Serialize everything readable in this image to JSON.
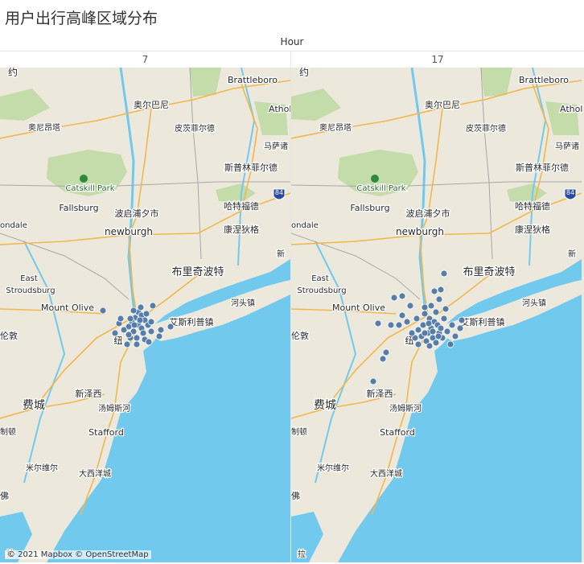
{
  "title": "用户出行高峰区域分布",
  "column_header": "Hour",
  "panels": [
    {
      "hour": "7",
      "points": [
        [
          172,
          388
        ],
        [
          176,
          392
        ],
        [
          168,
          395
        ],
        [
          180,
          398
        ],
        [
          164,
          400
        ],
        [
          172,
          404
        ],
        [
          176,
          408
        ],
        [
          166,
          412
        ],
        [
          178,
          414
        ],
        [
          160,
          406
        ],
        [
          184,
          404
        ],
        [
          170,
          420
        ],
        [
          180,
          422
        ],
        [
          162,
          420
        ],
        [
          154,
          410
        ],
        [
          148,
          402
        ],
        [
          143,
          414
        ],
        [
          188,
          400
        ],
        [
          190,
          380
        ],
        [
          200,
          410
        ],
        [
          212,
          406
        ],
        [
          198,
          418
        ],
        [
          185,
          425
        ],
        [
          158,
          428
        ],
        [
          128,
          386
        ],
        [
          150,
          396
        ],
        [
          175,
          382
        ],
        [
          182,
          390
        ],
        [
          166,
          386
        ],
        [
          188,
          412
        ],
        [
          160,
          416
        ],
        [
          170,
          428
        ],
        [
          174,
          398
        ],
        [
          167,
          404
        ],
        [
          162,
          396
        ]
      ]
    },
    {
      "hour": "17",
      "points": [
        [
          528,
          390
        ],
        [
          534,
          396
        ],
        [
          540,
          400
        ],
        [
          526,
          404
        ],
        [
          536,
          408
        ],
        [
          544,
          404
        ],
        [
          520,
          410
        ],
        [
          532,
          414
        ],
        [
          546,
          414
        ],
        [
          524,
          418
        ],
        [
          538,
          420
        ],
        [
          530,
          424
        ],
        [
          542,
          426
        ],
        [
          550,
          420
        ],
        [
          516,
          420
        ],
        [
          512,
          414
        ],
        [
          520,
          428
        ],
        [
          534,
          430
        ],
        [
          548,
          408
        ],
        [
          556,
          412
        ],
        [
          562,
          404
        ],
        [
          566,
          418
        ],
        [
          574,
          398
        ],
        [
          552,
          396
        ],
        [
          542,
          388
        ],
        [
          536,
          380
        ],
        [
          546,
          372
        ],
        [
          540,
          362
        ],
        [
          548,
          360
        ],
        [
          552,
          340
        ],
        [
          506,
          400
        ],
        [
          500,
          392
        ],
        [
          496,
          404
        ],
        [
          486,
          404
        ],
        [
          470,
          402
        ],
        [
          490,
          370
        ],
        [
          500,
          368
        ],
        [
          480,
          438
        ],
        [
          476,
          446
        ],
        [
          464,
          474
        ],
        [
          510,
          380
        ],
        [
          528,
          382
        ],
        [
          554,
          384
        ],
        [
          560,
          428
        ],
        [
          572,
          408
        ],
        [
          518,
          396
        ],
        [
          528,
          414
        ],
        [
          538,
          412
        ],
        [
          545,
          418
        ],
        [
          533,
          402
        ]
      ]
    }
  ],
  "map_labels": [
    {
      "text": "Brattleboro",
      "kind": "city"
    },
    {
      "text": "奥尔巴尼",
      "kind": "city"
    },
    {
      "text": "Athol",
      "kind": "city"
    },
    {
      "text": "奥尼昂塔",
      "kind": "city"
    },
    {
      "text": "皮茨菲尔德",
      "kind": "city"
    },
    {
      "text": "马萨诸",
      "kind": "city"
    },
    {
      "text": "斯普林菲尔德",
      "kind": "city"
    },
    {
      "text": "Catskill Park",
      "kind": "park"
    },
    {
      "text": "Fallsburg",
      "kind": "city"
    },
    {
      "text": "波启浦夕市",
      "kind": "city"
    },
    {
      "text": "哈特福德",
      "kind": "city"
    },
    {
      "text": "康涅狄格",
      "kind": "region"
    },
    {
      "text": "newburgh",
      "kind": "city"
    },
    {
      "text": "ondale",
      "kind": "city"
    },
    {
      "text": "布里奇波特",
      "kind": "city-large"
    },
    {
      "text": "East",
      "kind": "city"
    },
    {
      "text": "Stroudsburg",
      "kind": "city"
    },
    {
      "text": "Mount Olive",
      "kind": "city"
    },
    {
      "text": "河头镇",
      "kind": "city"
    },
    {
      "text": "艾斯利普镇",
      "kind": "city"
    },
    {
      "text": "伦敦",
      "kind": "city"
    },
    {
      "text": "新泽西",
      "kind": "region"
    },
    {
      "text": "费城",
      "kind": "city-large"
    },
    {
      "text": "汤姆斯河",
      "kind": "city"
    },
    {
      "text": "Stafford",
      "kind": "city"
    },
    {
      "text": "米尔维尔",
      "kind": "city"
    },
    {
      "text": "大西洋城",
      "kind": "city"
    },
    {
      "text": "约",
      "kind": "city"
    },
    {
      "text": "新",
      "kind": "city"
    },
    {
      "text": "纽",
      "kind": "city"
    },
    {
      "text": "制顿",
      "kind": "city"
    },
    {
      "text": "佛",
      "kind": "city"
    },
    {
      "text": "拉",
      "kind": "city"
    },
    {
      "text": "84",
      "kind": "shield"
    }
  ],
  "attribution": "© 2021 Mapbox © OpenStreetMap",
  "colors": {
    "land": "#ece9dc",
    "water": "#72c9ee",
    "forest": "#b9d89e",
    "dot": "#4e79a7",
    "road": "#f2b64c",
    "border": "#a6a6a6",
    "shield": "#2a4a9f"
  }
}
